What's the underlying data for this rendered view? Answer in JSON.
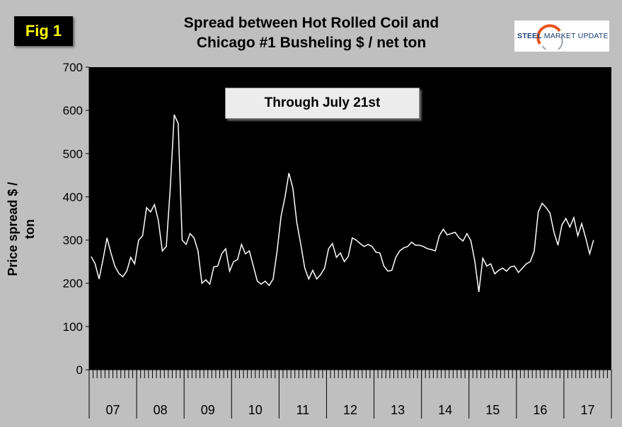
{
  "fig_label": "Fig 1",
  "logo": {
    "text_bold": "STEEL",
    "text_rest": "MARKET UPDATE"
  },
  "chart_data": {
    "type": "line",
    "title_line1": "Spread between Hot Rolled Coil and",
    "title_line2": "Chicago #1 Busheling  $ / net ton",
    "annotation": "Through July 21st",
    "ylabel": "Price spread $ / ton",
    "xlabel": "",
    "ylim": [
      0,
      700
    ],
    "yticks": [
      "0",
      "100",
      "200",
      "300",
      "400",
      "500",
      "600",
      "700"
    ],
    "year_labels": [
      "07",
      "08",
      "09",
      "10",
      "11",
      "12",
      "13",
      "14",
      "15",
      "16",
      "17"
    ],
    "grid": false,
    "series": [
      {
        "values": [
          262,
          245,
          210,
          255,
          305,
          270,
          240,
          223,
          215,
          228,
          260,
          245,
          300,
          310,
          375,
          365,
          382,
          345,
          275,
          285,
          420,
          590,
          570,
          300,
          290,
          315,
          305,
          275,
          200,
          208,
          198,
          238,
          240,
          268,
          280,
          228,
          250,
          255,
          290,
          268,
          275,
          240,
          205,
          198,
          205,
          195,
          210,
          275,
          355,
          400,
          455,
          420,
          340,
          290,
          235,
          210,
          230,
          210,
          220,
          235,
          280,
          292,
          260,
          270,
          250,
          262,
          305,
          300,
          292,
          285,
          290,
          285,
          272,
          270,
          240,
          228,
          230,
          260,
          275,
          282,
          285,
          295,
          288,
          288,
          285,
          280,
          278,
          275,
          310,
          325,
          312,
          315,
          318,
          305,
          298,
          315,
          298,
          250,
          180,
          258,
          240,
          245,
          222,
          230,
          235,
          228,
          238,
          240,
          225,
          235,
          245,
          250,
          275,
          365,
          385,
          375,
          362,
          318,
          288,
          335,
          350,
          330,
          352,
          310,
          338,
          305,
          268,
          300
        ]
      }
    ]
  }
}
